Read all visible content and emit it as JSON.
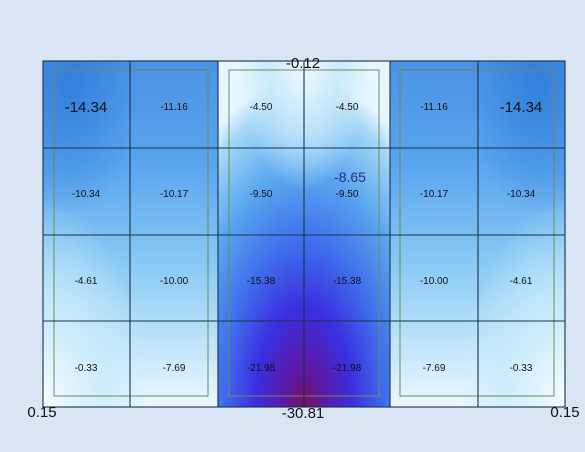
{
  "colors": {
    "background": "#d9e4f5",
    "grid_line": "#16324a",
    "panel_line": "#6f8a5a",
    "low": "#eaf6ff",
    "mid": "#5aa8ee",
    "high": "#3a2fe0",
    "peak": "#7a1060"
  },
  "edge_labels": {
    "top_center": "-0.12",
    "bottom_center": "-30.81",
    "bottom_left": "0.15",
    "bottom_right": "0.15",
    "inner_center": "-8.65"
  },
  "rows": [
    [
      "-14.34",
      "-11.16",
      "-4.50",
      "-4.50",
      "-11.16",
      "-14.34"
    ],
    [
      "-10.34",
      "-10.17",
      "-9.50",
      "-9.50",
      "-10.17",
      "-10.34"
    ],
    [
      "-4.61",
      "-10.00",
      "-15.38",
      "-15.38",
      "-10.00",
      "-4.61"
    ],
    [
      "-0.33",
      "-7.69",
      "-21.98",
      "-21.98",
      "-7.69",
      "-0.33"
    ]
  ],
  "cell_values": [
    [
      -14.34,
      -11.16,
      -4.5,
      -4.5,
      -11.16,
      -14.34
    ],
    [
      -10.34,
      -10.17,
      -9.5,
      -9.5,
      -10.17,
      -10.34
    ],
    [
      -4.61,
      -10.0,
      -15.38,
      -15.38,
      -10.0,
      -4.61
    ],
    [
      -0.33,
      -7.69,
      -21.98,
      -21.98,
      -7.69,
      -0.33
    ]
  ]
}
